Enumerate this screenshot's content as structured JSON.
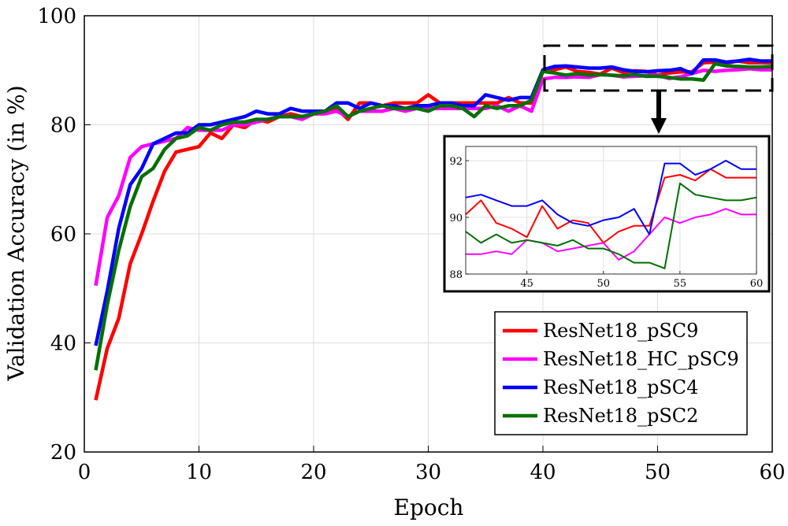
{
  "chart_data": {
    "type": "line",
    "title": "",
    "xlabel": "Epoch",
    "ylabel": "Validation Accuracy (in %)",
    "xlim": [
      0,
      60
    ],
    "ylim": [
      20,
      100
    ],
    "xticks": [
      "0",
      "10",
      "20",
      "30",
      "40",
      "50",
      "60"
    ],
    "yticks": [
      "20",
      "40",
      "60",
      "80",
      "100"
    ],
    "grid": true,
    "legend_position": "lower-right",
    "x": [
      1,
      2,
      3,
      4,
      5,
      6,
      7,
      8,
      9,
      10,
      11,
      12,
      13,
      14,
      15,
      16,
      17,
      18,
      19,
      20,
      21,
      22,
      23,
      24,
      25,
      26,
      27,
      28,
      29,
      30,
      31,
      32,
      33,
      34,
      35,
      36,
      37,
      38,
      39,
      40,
      41,
      42,
      43,
      44,
      45,
      46,
      47,
      48,
      49,
      50,
      51,
      52,
      53,
      54,
      55,
      56,
      57,
      58,
      59,
      60
    ],
    "series": [
      {
        "name": "ResNet18_pSC9",
        "color": "#ff0000",
        "values": [
          29.5,
          39,
          44.5,
          54.5,
          60,
          66,
          71.5,
          75,
          75.5,
          76,
          78.5,
          77.5,
          80,
          79.5,
          81,
          80.5,
          81.5,
          82,
          81.5,
          82,
          82.5,
          83,
          81,
          84,
          84,
          83.5,
          84,
          84,
          84,
          85.5,
          84,
          84,
          84,
          84,
          84,
          84,
          85,
          84,
          84,
          89.8,
          90.1,
          90.6,
          89.8,
          89.6,
          89.3,
          90.4,
          89.6,
          89.9,
          89.8,
          89.1,
          89.5,
          89.7,
          89.7,
          91.4,
          91.5,
          91.3,
          91.7,
          91.4,
          91.4,
          91.4
        ]
      },
      {
        "name": "ResNet18_HC_pSC9",
        "color": "#ff00ff",
        "values": [
          50.5,
          63,
          67,
          74,
          76,
          76.5,
          77,
          77.5,
          79.5,
          79,
          79,
          79,
          80,
          80,
          80.5,
          81,
          81.5,
          81.5,
          81,
          82,
          82,
          82.5,
          81.5,
          82.5,
          82.5,
          82.5,
          83,
          82.5,
          83,
          83,
          83,
          83,
          83,
          83,
          83,
          83.5,
          82.5,
          83.5,
          82.5,
          88.4,
          88.7,
          88.7,
          88.8,
          88.7,
          89.2,
          89.1,
          88.8,
          88.9,
          89,
          89.1,
          88.5,
          88.8,
          89.4,
          90,
          89.8,
          90,
          90.1,
          90.3,
          90.1,
          90.1
        ]
      },
      {
        "name": "ResNet18_pSC4",
        "color": "#0000ff",
        "values": [
          39.5,
          49.5,
          61,
          69,
          72,
          76.5,
          77.5,
          78.5,
          78.5,
          80,
          80,
          80.5,
          81,
          81.5,
          82.5,
          82,
          82,
          83,
          82.5,
          82.5,
          82.5,
          84,
          84,
          83,
          84,
          83.5,
          83.5,
          83,
          83.5,
          83.5,
          84,
          84,
          83.5,
          83.5,
          85.5,
          85,
          84.5,
          85,
          85,
          90.1,
          90.7,
          90.8,
          90.6,
          90.4,
          90.4,
          90.6,
          90.1,
          89.8,
          89.7,
          89.9,
          90,
          90.3,
          89.4,
          91.9,
          91.9,
          91.5,
          91.7,
          92,
          91.7,
          91.7
        ]
      },
      {
        "name": "ResNet18_pSC2",
        "color": "#007000",
        "values": [
          35,
          47,
          57,
          65,
          70.5,
          72,
          75.5,
          77.5,
          78,
          79.5,
          79,
          80,
          80.5,
          80.5,
          81,
          81,
          81.5,
          81.5,
          81.5,
          82,
          82.5,
          83.5,
          81.5,
          82.5,
          83,
          83.5,
          83,
          83,
          83,
          82.5,
          83.5,
          83.5,
          83,
          81.5,
          83.5,
          83,
          83.5,
          83.5,
          84.5,
          89.8,
          89.5,
          89.1,
          89.4,
          89.1,
          89.2,
          89.1,
          89,
          89.2,
          88.9,
          88.9,
          88.7,
          88.4,
          88.4,
          88.2,
          91.2,
          90.8,
          90.7,
          90.6,
          90.6,
          90.7
        ]
      }
    ],
    "inset": {
      "xlim": [
        41,
        60
      ],
      "ylim": [
        88,
        92.5
      ],
      "xticks": [
        "45",
        "50",
        "55",
        "60"
      ],
      "yticks": [
        "88",
        "90",
        "92"
      ]
    }
  }
}
